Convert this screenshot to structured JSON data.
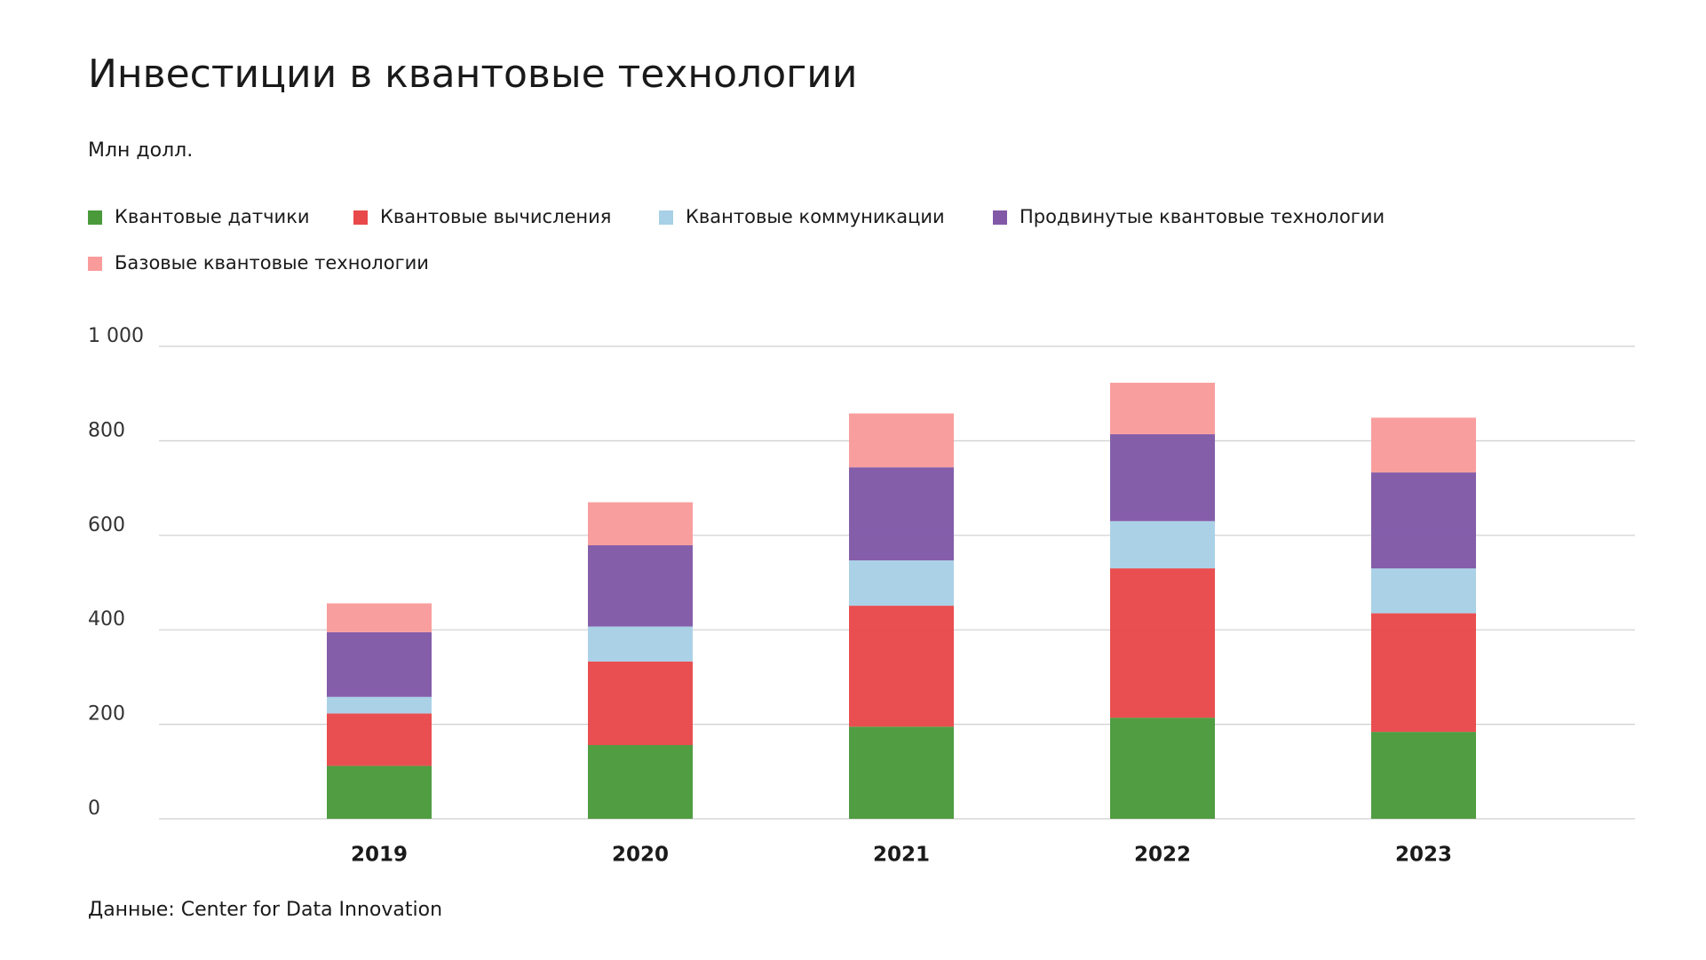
{
  "chart_data": {
    "type": "stacked-bar",
    "title": "Инвестиции в квантовые технологии",
    "subtitle": "Млн долл.",
    "source": "Данные: Center for Data Innovation",
    "categories": [
      "2019",
      "2020",
      "2021",
      "2022",
      "2023"
    ],
    "series": [
      {
        "name": "Квантовые датчики",
        "color": "#4a9a3c",
        "values": [
          112,
          156,
          195,
          214,
          184
        ]
      },
      {
        "name": "Квантовые вычисления",
        "color": "#e8494a",
        "values": [
          111,
          177,
          256,
          316,
          251
        ]
      },
      {
        "name": "Квантовые коммуникации",
        "color": "#a8d0e6",
        "values": [
          35,
          74,
          96,
          100,
          95
        ]
      },
      {
        "name": "Продвинутые квантовые технологии",
        "color": "#8159a7",
        "values": [
          137,
          172,
          197,
          184,
          203
        ]
      },
      {
        "name": "Базовые квантовые технологии",
        "color": "#f99b9b",
        "values": [
          61,
          91,
          114,
          109,
          116
        ]
      }
    ],
    "ylim": [
      0,
      1000
    ],
    "yticks": [
      0,
      200,
      400,
      600,
      800,
      {
        "value": 1000,
        "label": "1 000"
      }
    ],
    "grid": true
  }
}
